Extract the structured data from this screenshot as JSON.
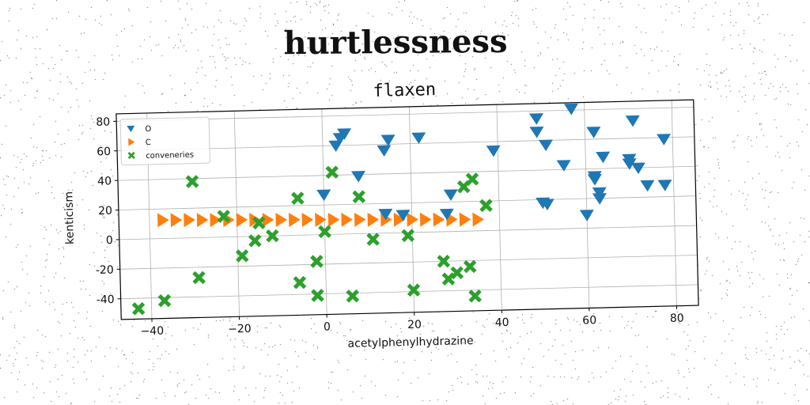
{
  "figure": {
    "suptitle": "hurtlessness"
  },
  "chart_data": {
    "type": "scatter",
    "title": "flaxen",
    "xlabel": "acetylphenylhydrazine",
    "ylabel": "kenticism",
    "xlim": [
      -47,
      85
    ],
    "ylim": [
      -54,
      85
    ],
    "xticks": [
      "-40",
      "-20",
      "0",
      "20",
      "40",
      "60",
      "80"
    ],
    "yticks": [
      "-40",
      "-20",
      "0",
      "20",
      "40",
      "60",
      "80"
    ],
    "grid": true,
    "legend": "top-left",
    "series": [
      {
        "name": "O",
        "marker": "triangle-down",
        "color": "#1f77b4",
        "points": [
          [
            3,
            60
          ],
          [
            4,
            65
          ],
          [
            5,
            68
          ],
          [
            0,
            27
          ],
          [
            8,
            39
          ],
          [
            14,
            56
          ],
          [
            15,
            63
          ],
          [
            22,
            64
          ],
          [
            29,
            25
          ],
          [
            28,
            12
          ],
          [
            14,
            13
          ],
          [
            18,
            12
          ],
          [
            39,
            54
          ],
          [
            49,
            75
          ],
          [
            49,
            66
          ],
          [
            51,
            57
          ],
          [
            57,
            81
          ],
          [
            60,
            9
          ],
          [
            62,
            35
          ],
          [
            62,
            65
          ],
          [
            62,
            33
          ],
          [
            63,
            20
          ],
          [
            63,
            24
          ],
          [
            64,
            48
          ],
          [
            55,
            43
          ],
          [
            51,
            17
          ],
          [
            50,
            18
          ],
          [
            71,
            72
          ],
          [
            70,
            46
          ],
          [
            70,
            43
          ],
          [
            72,
            40
          ],
          [
            74,
            28
          ],
          [
            78,
            28
          ],
          [
            78,
            59
          ]
        ]
      },
      {
        "name": "C",
        "marker": "triangle-right",
        "color": "#ff7f0e",
        "points": [
          [
            -37,
            12.5
          ],
          [
            -34,
            12.3
          ],
          [
            -31,
            12.1
          ],
          [
            -28,
            11.9
          ],
          [
            -25,
            11.7
          ],
          [
            -22,
            11.5
          ],
          [
            -19,
            11.3
          ],
          [
            -16,
            11.1
          ],
          [
            -13,
            10.9
          ],
          [
            -10,
            10.7
          ],
          [
            -7,
            10.5
          ],
          [
            -4,
            10.3
          ],
          [
            -1,
            10.1
          ],
          [
            2,
            9.9
          ],
          [
            5,
            9.7
          ],
          [
            8,
            9.5
          ],
          [
            11,
            9.3
          ],
          [
            14,
            9.1
          ],
          [
            17,
            8.9
          ],
          [
            20,
            8.7
          ],
          [
            23,
            8.5
          ],
          [
            26,
            8.3
          ],
          [
            29,
            8.1
          ],
          [
            32,
            7.9
          ],
          [
            35,
            7.7
          ]
        ]
      },
      {
        "name": "conveneries",
        "marker": "x",
        "color": "#2ca02c",
        "points": [
          [
            -43,
            -47
          ],
          [
            -37,
            -42
          ],
          [
            -30,
            38
          ],
          [
            -29,
            -27
          ],
          [
            -23,
            14
          ],
          [
            -19,
            -13
          ],
          [
            -16,
            -3
          ],
          [
            -15,
            9
          ],
          [
            -12,
            0
          ],
          [
            -6,
            25
          ],
          [
            -6,
            -32
          ],
          [
            -2,
            -18
          ],
          [
            -2,
            -41
          ],
          [
            0,
            2
          ],
          [
            2,
            42
          ],
          [
            6,
            -42
          ],
          [
            8,
            25
          ],
          [
            11,
            -4
          ],
          [
            19,
            -2
          ],
          [
            20,
            -39
          ],
          [
            27,
            -20
          ],
          [
            28,
            -32
          ],
          [
            30,
            -28
          ],
          [
            32,
            30
          ],
          [
            33,
            -24
          ],
          [
            34,
            -44
          ],
          [
            34,
            35
          ],
          [
            37,
            17
          ]
        ]
      }
    ]
  }
}
